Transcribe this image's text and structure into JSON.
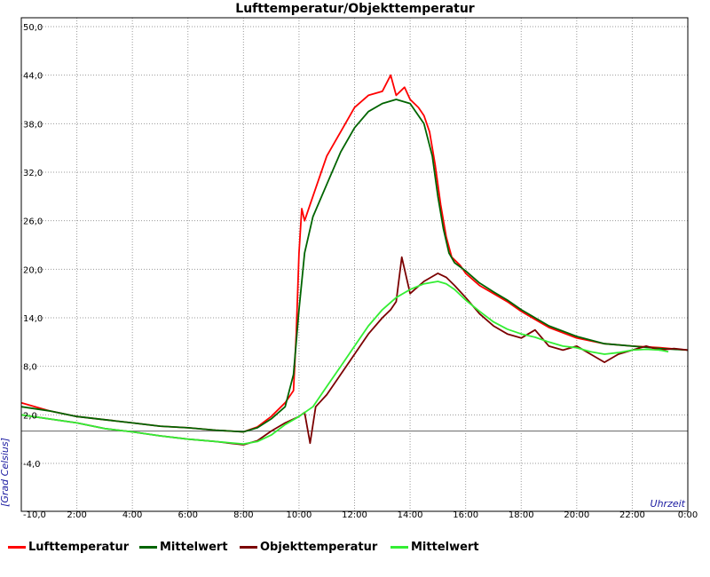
{
  "chart_data": {
    "type": "line",
    "title": "Lufttemperatur/Objekttemperatur",
    "xlabel": "Uhrzeit",
    "ylabel": "[Grad Celsius]",
    "xlim": [
      0,
      24
    ],
    "ylim": [
      -10,
      50
    ],
    "x_tick_labels": [
      "-10,0",
      "2:00",
      "4:00",
      "6:00",
      "8:00",
      "10:00",
      "12:00",
      "14:00",
      "16:00",
      "18:00",
      "20:00",
      "22:00",
      "0:00"
    ],
    "y_ticks": [
      50,
      44,
      38,
      32,
      26,
      20,
      14,
      8,
      2,
      -4
    ],
    "y_tick_labels": [
      "50,0",
      "44,0",
      "38,0",
      "32,0",
      "26,0",
      "20,0",
      "14,0",
      "8,0",
      "2,0",
      "-4,0"
    ],
    "grid": true,
    "legend_position": "bottom",
    "zero_line": 0,
    "series": [
      {
        "name": "Lufttemperatur",
        "color": "#ff0000",
        "x": [
          0,
          1,
          2,
          3,
          4,
          5,
          6,
          7,
          8,
          8.5,
          9,
          9.5,
          9.8,
          9.9,
          10.0,
          10.1,
          10.2,
          10.4,
          10.7,
          11,
          11.5,
          12,
          12.5,
          13,
          13.3,
          13.5,
          13.8,
          14,
          14.3,
          14.5,
          14.7,
          14.9,
          15.1,
          15.3,
          15.5,
          15.8,
          16,
          16.5,
          17,
          17.5,
          18,
          18.5,
          19,
          20,
          21,
          22,
          23,
          24
        ],
        "y": [
          3.5,
          2.5,
          1.8,
          1.4,
          1.0,
          0.6,
          0.4,
          0.1,
          -0.1,
          0.5,
          1.8,
          3.5,
          5.0,
          12.0,
          22.0,
          27.5,
          26.0,
          28.0,
          31.0,
          34.0,
          37.0,
          40.0,
          41.5,
          42.0,
          44.0,
          41.5,
          42.5,
          41.0,
          40.0,
          39.0,
          37.0,
          33.0,
          28.0,
          24.0,
          21.5,
          20.5,
          19.5,
          18.0,
          17.0,
          16.0,
          14.8,
          13.8,
          12.8,
          11.5,
          10.8,
          10.5,
          10.3,
          10.0
        ]
      },
      {
        "name": "Mittelwert",
        "color": "#006400",
        "x": [
          0,
          1,
          2,
          3,
          4,
          5,
          6,
          7,
          8,
          8.5,
          9,
          9.5,
          9.8,
          10.0,
          10.2,
          10.5,
          11,
          11.5,
          12,
          12.5,
          13,
          13.5,
          14,
          14.5,
          14.8,
          15.0,
          15.2,
          15.4,
          15.6,
          16,
          16.5,
          17,
          17.5,
          18,
          18.5,
          19,
          20,
          21,
          22,
          23,
          24
        ],
        "y": [
          3.0,
          2.5,
          1.8,
          1.4,
          1.0,
          0.6,
          0.4,
          0.1,
          -0.1,
          0.4,
          1.5,
          3.0,
          7.0,
          15.0,
          22.0,
          26.5,
          30.5,
          34.5,
          37.5,
          39.5,
          40.5,
          41.0,
          40.5,
          38.0,
          34.0,
          29.0,
          25.0,
          22.0,
          20.8,
          19.8,
          18.3,
          17.2,
          16.2,
          15.0,
          14.0,
          13.0,
          11.7,
          10.8,
          10.5,
          10.2,
          10.0
        ]
      },
      {
        "name": "Objekttemperatur",
        "color": "#7b0000",
        "x": [
          0,
          1,
          2,
          3,
          4,
          5,
          6,
          7,
          8,
          8.5,
          9,
          9.5,
          10,
          10.2,
          10.4,
          10.6,
          11,
          11.5,
          12,
          12.5,
          13,
          13.3,
          13.5,
          13.7,
          14,
          14.5,
          15,
          15.3,
          15.6,
          16,
          16.5,
          17,
          17.5,
          18,
          18.5,
          19,
          19.5,
          20,
          20.5,
          21,
          21.5,
          22,
          22.5,
          23,
          23.5,
          24
        ],
        "y": [
          2.0,
          1.5,
          1.0,
          0.3,
          -0.1,
          -0.6,
          -1.0,
          -1.3,
          -1.7,
          -1.2,
          0.0,
          1.0,
          1.8,
          2.3,
          -1.5,
          3.0,
          4.5,
          7.0,
          9.5,
          12.0,
          14.0,
          15.0,
          16.0,
          21.5,
          17.0,
          18.5,
          19.5,
          19.0,
          18.0,
          16.5,
          14.5,
          13.0,
          12.0,
          11.5,
          12.5,
          10.5,
          10.0,
          10.5,
          9.5,
          8.5,
          9.5,
          10.0,
          10.5,
          10.0,
          10.2,
          10.0
        ]
      },
      {
        "name": "Mittelwert",
        "color": "#33ee33",
        "x": [
          0,
          1,
          2,
          3,
          4,
          5,
          6,
          7,
          8,
          8.5,
          9,
          9.5,
          10,
          10.5,
          11,
          11.5,
          12,
          12.5,
          13,
          13.5,
          14,
          14.5,
          15,
          15.3,
          15.6,
          16,
          16.5,
          17,
          17.5,
          18,
          18.5,
          19,
          19.5,
          20,
          20.5,
          21,
          21.5,
          22,
          22.5,
          23,
          23.3
        ],
        "y": [
          2.0,
          1.5,
          1.0,
          0.3,
          -0.1,
          -0.6,
          -1.0,
          -1.3,
          -1.6,
          -1.3,
          -0.5,
          0.8,
          1.8,
          3.0,
          5.5,
          8.0,
          10.5,
          13.0,
          15.0,
          16.5,
          17.5,
          18.2,
          18.5,
          18.2,
          17.5,
          16.2,
          14.8,
          13.5,
          12.6,
          12.0,
          11.6,
          11.0,
          10.5,
          10.3,
          9.8,
          9.5,
          9.7,
          10.0,
          10.1,
          10.0,
          9.8
        ]
      }
    ]
  }
}
